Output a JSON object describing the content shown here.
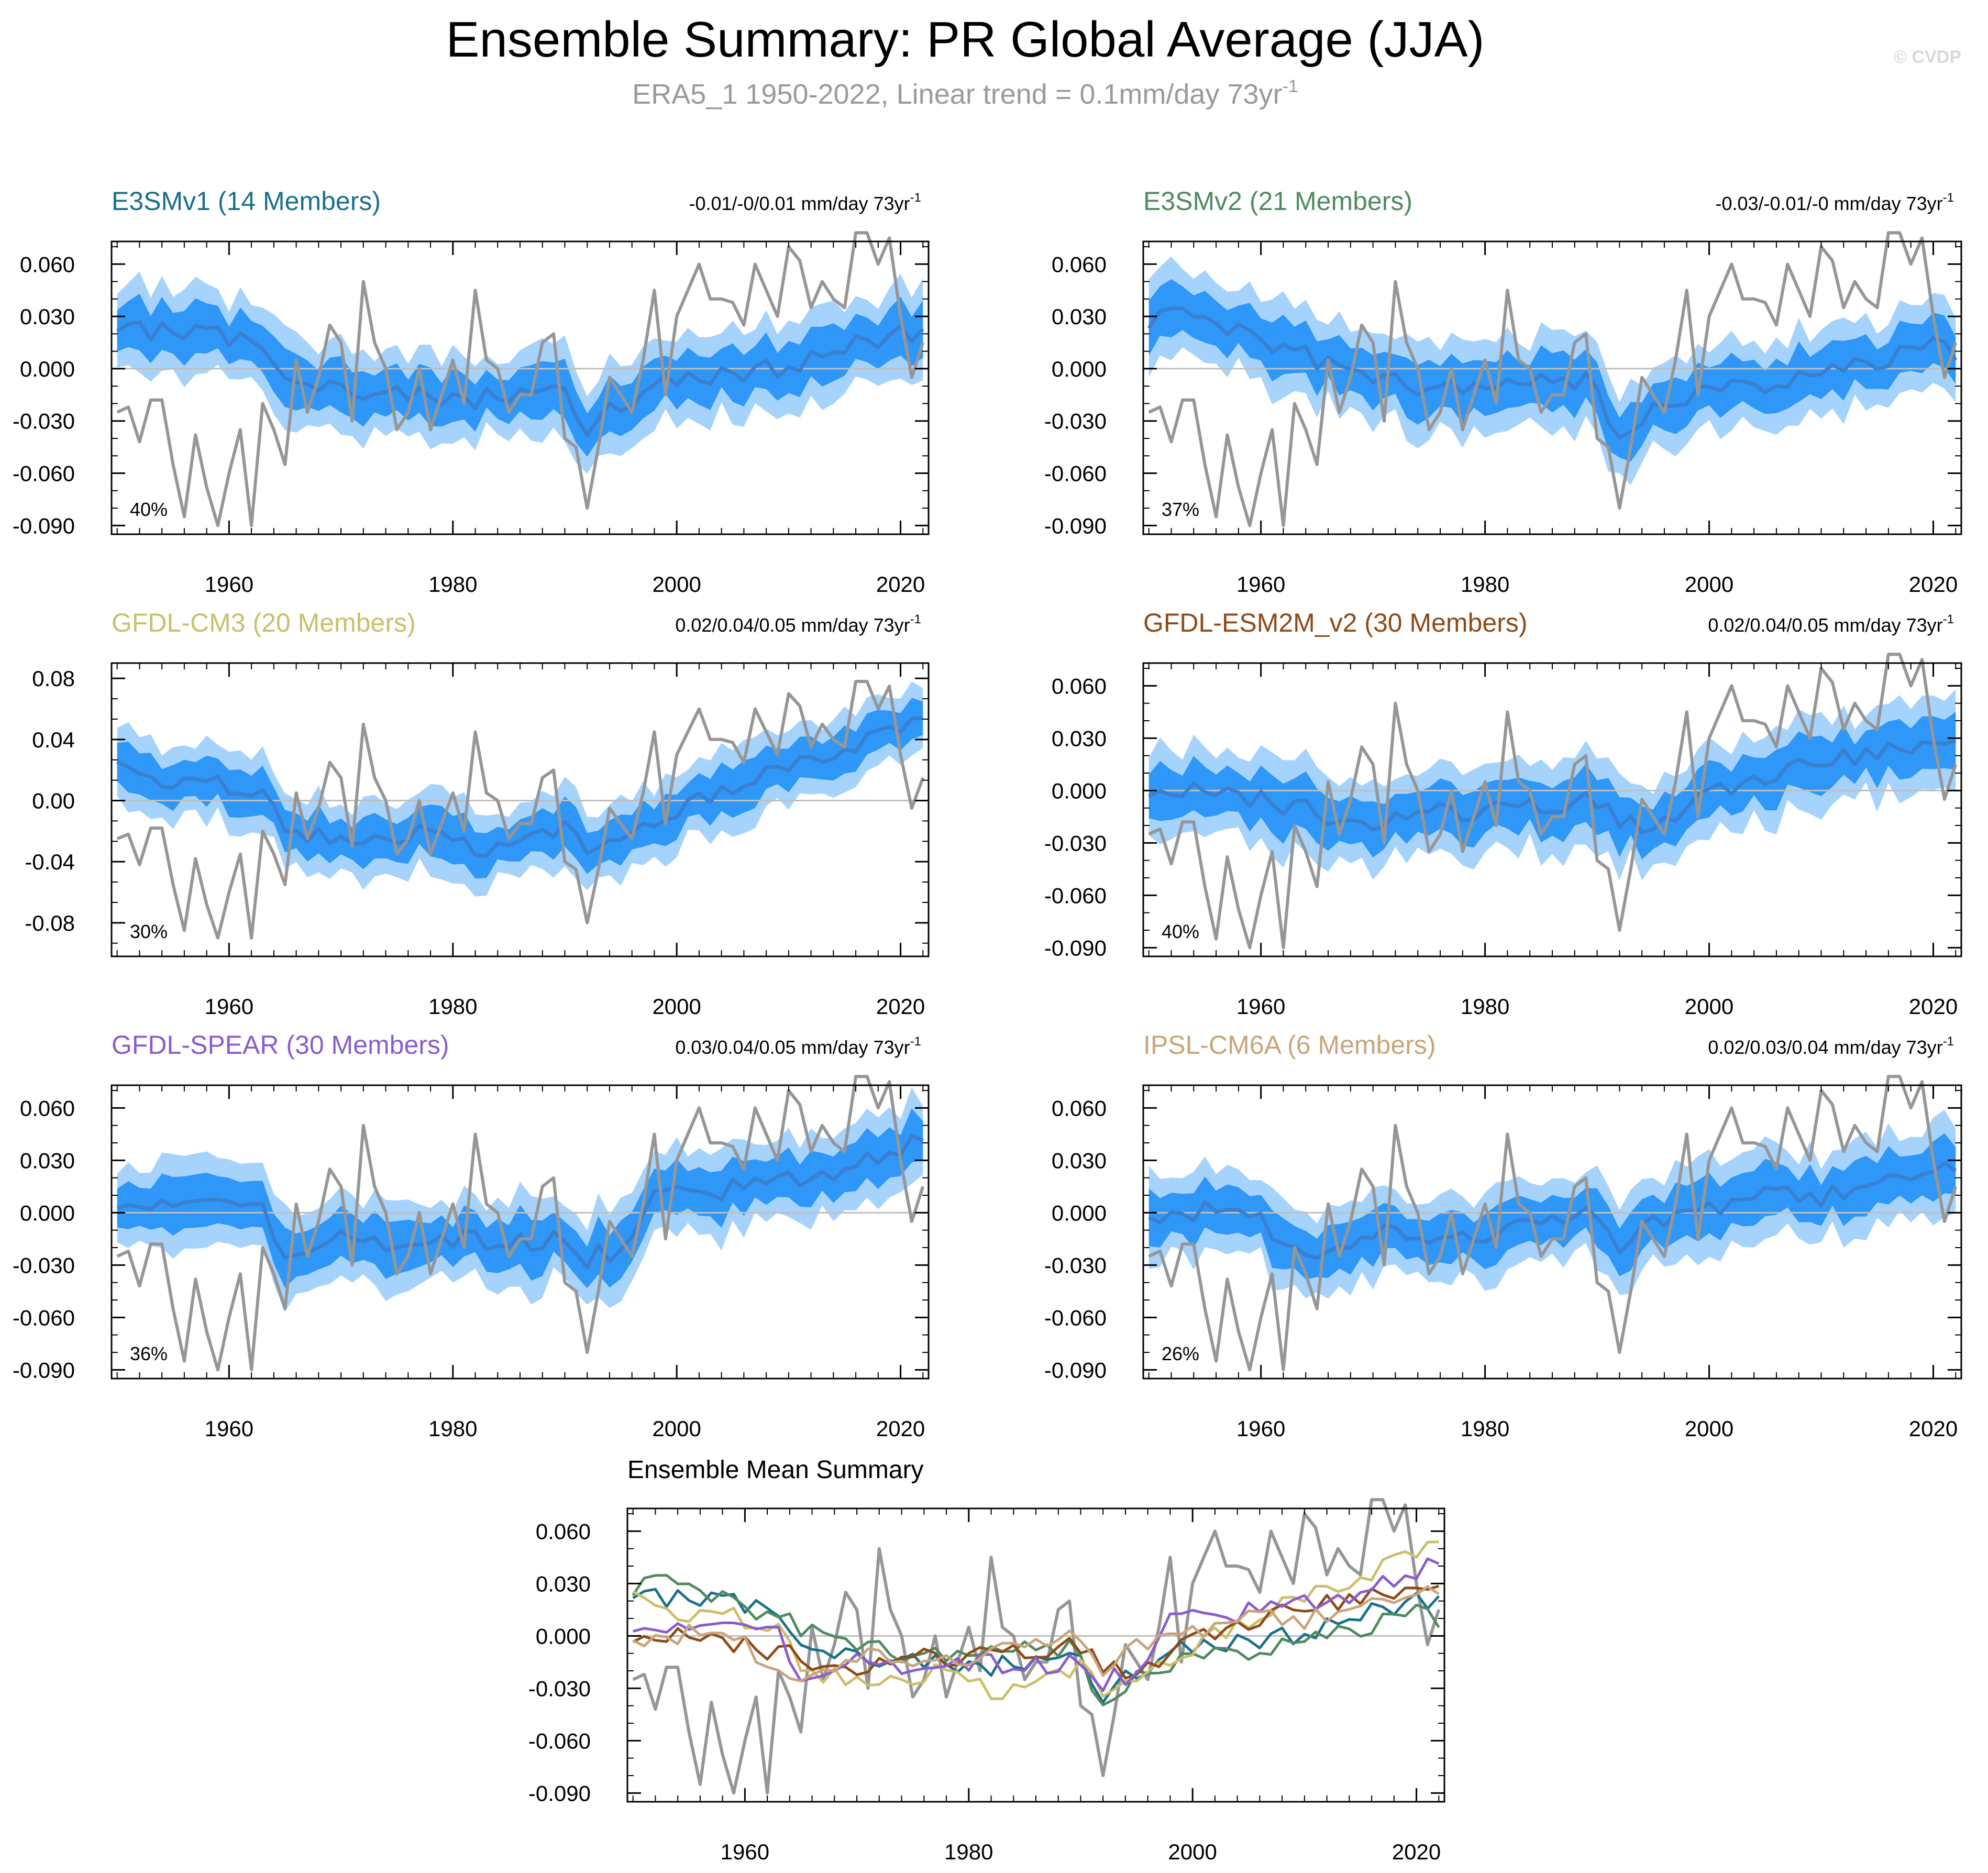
{
  "page": {
    "title": "Ensemble Summary: PR Global Average (JJA)",
    "subtitle_main": "ERA5_1 1950-2022, Linear trend = 0.1mm/day 73yr",
    "subtitle_sup": "-1",
    "watermark": "© CVDP"
  },
  "colors": {
    "band_outer": "#a6d3fb",
    "band_inner": "#2e97f8",
    "mean_line": "#3a7fd0",
    "obs_line": "#969696",
    "zero_line": "#bfbfbf"
  },
  "chart_data": [
    {
      "type": "line",
      "title": "E3SMv1 (14 Members)",
      "title_color": "#19708b",
      "trend": "-0.01/-0/0.01 mm/day 73yr",
      "trend_sup": "-1",
      "pct": "40%",
      "ylim": [
        -0.095,
        0.073
      ],
      "xlim": [
        1949.5,
        2022.5
      ],
      "yticks": [
        0.06,
        0.03,
        0.0,
        -0.03,
        -0.06,
        -0.09
      ],
      "yticklabels": [
        "0.060",
        "0.030",
        "0.000",
        "-0.030",
        "-0.060",
        "-0.090"
      ],
      "xticks": [
        1960,
        1980,
        2000,
        2020
      ],
      "xticklabels": [
        "1960",
        "1980",
        "2000",
        "2020"
      ],
      "series": [
        {
          "name": "E3SMv1 ensemble mean",
          "anchors": [
            [
              1950,
              0.026
            ],
            [
              1955,
              0.02
            ],
            [
              1960,
              0.018
            ],
            [
              1963,
              0.014
            ],
            [
              1965,
              0.0
            ],
            [
              1970,
              -0.012
            ],
            [
              1975,
              -0.015
            ],
            [
              1980,
              -0.018
            ],
            [
              1985,
              -0.016
            ],
            [
              1990,
              -0.01
            ],
            [
              1992,
              -0.035
            ],
            [
              1995,
              -0.02
            ],
            [
              2000,
              -0.004
            ],
            [
              2005,
              -0.005
            ],
            [
              2010,
              0.002
            ],
            [
              2015,
              0.012
            ],
            [
              2020,
              0.022
            ],
            [
              2022,
              0.018
            ]
          ]
        }
      ]
    },
    {
      "type": "line",
      "title": "E3SMv2 (21 Members)",
      "title_color": "#4f8a5e",
      "trend": "-0.03/-0.01/-0 mm/day 73yr",
      "trend_sup": "-1",
      "pct": "37%",
      "ylim": [
        -0.095,
        0.073
      ],
      "xlim": [
        1949.5,
        2022.5
      ],
      "yticks": [
        0.06,
        0.03,
        0.0,
        -0.03,
        -0.06,
        -0.09
      ],
      "yticklabels": [
        "0.060",
        "0.030",
        "0.000",
        "-0.030",
        "-0.060",
        "-0.090"
      ],
      "xticks": [
        1960,
        1980,
        2000,
        2020
      ],
      "xticklabels": [
        "1960",
        "1980",
        "2000",
        "2020"
      ],
      "series": [
        {
          "name": "E3SMv2 ensemble mean",
          "anchors": [
            [
              1950,
              0.026
            ],
            [
              1953,
              0.03
            ],
            [
              1956,
              0.028
            ],
            [
              1960,
              0.018
            ],
            [
              1965,
              0.005
            ],
            [
              1970,
              -0.006
            ],
            [
              1975,
              -0.01
            ],
            [
              1980,
              -0.012
            ],
            [
              1985,
              -0.006
            ],
            [
              1990,
              -0.008
            ],
            [
              1992,
              -0.045
            ],
            [
              1995,
              -0.02
            ],
            [
              2000,
              -0.012
            ],
            [
              2005,
              -0.008
            ],
            [
              2010,
              -0.002
            ],
            [
              2015,
              0.004
            ],
            [
              2020,
              0.012
            ],
            [
              2022,
              0.01
            ]
          ]
        }
      ]
    },
    {
      "type": "line",
      "title": "GFDL-CM3 (20 Members)",
      "title_color": "#cbbf6a",
      "trend": "0.02/0.04/0.05 mm/day 73yr",
      "trend_sup": "-1",
      "pct": "30%",
      "ylim": [
        -0.102,
        0.09
      ],
      "xlim": [
        1949.5,
        2022.5
      ],
      "yticks": [
        0.08,
        0.04,
        0.0,
        -0.04,
        -0.08
      ],
      "yticklabels": [
        "0.08",
        "0.04",
        "0.00",
        "-0.04",
        "-0.08"
      ],
      "xticks": [
        1960,
        1980,
        2000,
        2020
      ],
      "xticklabels": [
        "1960",
        "1980",
        "2000",
        "2020"
      ],
      "series": [
        {
          "name": "GFDL-CM3 ensemble mean",
          "anchors": [
            [
              1950,
              0.022
            ],
            [
              1955,
              0.012
            ],
            [
              1960,
              0.01
            ],
            [
              1963,
              0.005
            ],
            [
              1965,
              -0.02
            ],
            [
              1970,
              -0.024
            ],
            [
              1975,
              -0.022
            ],
            [
              1980,
              -0.022
            ],
            [
              1982,
              -0.035
            ],
            [
              1985,
              -0.03
            ],
            [
              1990,
              -0.015
            ],
            [
              1992,
              -0.038
            ],
            [
              1995,
              -0.02
            ],
            [
              2000,
              -0.005
            ],
            [
              2005,
              0.008
            ],
            [
              2010,
              0.022
            ],
            [
              2015,
              0.035
            ],
            [
              2020,
              0.046
            ],
            [
              2022,
              0.05
            ]
          ]
        }
      ]
    },
    {
      "type": "line",
      "title": "GFDL-ESM2M_v2 (30 Members)",
      "title_color": "#8e4a17",
      "trend": "0.02/0.04/0.05 mm/day 73yr",
      "trend_sup": "-1",
      "pct": "40%",
      "ylim": [
        -0.095,
        0.073
      ],
      "xlim": [
        1949.5,
        2022.5
      ],
      "yticks": [
        0.06,
        0.03,
        0.0,
        -0.03,
        -0.06,
        -0.09
      ],
      "yticklabels": [
        "0.060",
        "0.030",
        "0.000",
        "-0.030",
        "-0.060",
        "-0.090"
      ],
      "xticks": [
        1960,
        1980,
        2000,
        2020
      ],
      "xticklabels": [
        "1960",
        "1980",
        "2000",
        "2020"
      ],
      "series": [
        {
          "name": "GFDL-ESM2M_v2 ensemble mean",
          "anchors": [
            [
              1950,
              0.002
            ],
            [
              1955,
              -0.002
            ],
            [
              1960,
              -0.005
            ],
            [
              1964,
              -0.01
            ],
            [
              1966,
              -0.025
            ],
            [
              1970,
              -0.018
            ],
            [
              1975,
              -0.012
            ],
            [
              1980,
              -0.012
            ],
            [
              1985,
              -0.01
            ],
            [
              1990,
              -0.006
            ],
            [
              1992,
              -0.016
            ],
            [
              1995,
              -0.02
            ],
            [
              2000,
              0.0
            ],
            [
              2005,
              0.006
            ],
            [
              2010,
              0.018
            ],
            [
              2015,
              0.022
            ],
            [
              2020,
              0.024
            ],
            [
              2022,
              0.026
            ]
          ]
        }
      ]
    },
    {
      "type": "line",
      "title": "GFDL-SPEAR (30 Members)",
      "title_color": "#8a5ccc",
      "trend": "0.03/0.04/0.05 mm/day 73yr",
      "trend_sup": "-1",
      "pct": "36%",
      "ylim": [
        -0.095,
        0.073
      ],
      "xlim": [
        1949.5,
        2022.5
      ],
      "yticks": [
        0.06,
        0.03,
        0.0,
        -0.03,
        -0.06,
        -0.09
      ],
      "yticklabels": [
        "0.060",
        "0.030",
        "0.000",
        "-0.030",
        "-0.060",
        "-0.090"
      ],
      "xticks": [
        1960,
        1980,
        2000,
        2020
      ],
      "xticklabels": [
        "1960",
        "1980",
        "2000",
        "2020"
      ],
      "series": [
        {
          "name": "GFDL-SPEAR ensemble mean",
          "anchors": [
            [
              1950,
              0.008
            ],
            [
              1955,
              0.008
            ],
            [
              1960,
              0.002
            ],
            [
              1963,
              0.0
            ],
            [
              1965,
              -0.022
            ],
            [
              1970,
              -0.015
            ],
            [
              1975,
              -0.018
            ],
            [
              1980,
              -0.015
            ],
            [
              1985,
              -0.018
            ],
            [
              1990,
              -0.012
            ],
            [
              1992,
              -0.026
            ],
            [
              1995,
              -0.02
            ],
            [
              1998,
              0.008
            ],
            [
              2000,
              0.012
            ],
            [
              2005,
              0.014
            ],
            [
              2010,
              0.02
            ],
            [
              2015,
              0.026
            ],
            [
              2020,
              0.036
            ],
            [
              2022,
              0.042
            ]
          ]
        }
      ]
    },
    {
      "type": "line",
      "title": "IPSL-CM6A (6 Members)",
      "title_color": "#c9a47c",
      "trend": "0.02/0.03/0.04 mm/day 73yr",
      "trend_sup": "-1",
      "pct": "26%",
      "ylim": [
        -0.095,
        0.073
      ],
      "xlim": [
        1949.5,
        2022.5
      ],
      "yticks": [
        0.06,
        0.03,
        0.0,
        -0.03,
        -0.06,
        -0.09
      ],
      "yticklabels": [
        "0.060",
        "0.030",
        "0.000",
        "-0.030",
        "-0.060",
        "-0.090"
      ],
      "xticks": [
        1960,
        1980,
        2000,
        2020
      ],
      "xticklabels": [
        "1960",
        "1980",
        "2000",
        "2020"
      ],
      "series": [
        {
          "name": "IPSL-CM6A ensemble mean",
          "anchors": [
            [
              1950,
              -0.004
            ],
            [
              1955,
              0.002
            ],
            [
              1960,
              -0.005
            ],
            [
              1965,
              -0.028
            ],
            [
              1970,
              -0.01
            ],
            [
              1975,
              -0.012
            ],
            [
              1980,
              -0.012
            ],
            [
              1985,
              -0.006
            ],
            [
              1990,
              -0.002
            ],
            [
              1992,
              -0.028
            ],
            [
              1995,
              -0.005
            ],
            [
              2000,
              0.004
            ],
            [
              2005,
              0.01
            ],
            [
              2010,
              0.008
            ],
            [
              2015,
              0.018
            ],
            [
              2020,
              0.024
            ],
            [
              2022,
              0.03
            ]
          ]
        }
      ]
    },
    {
      "type": "line",
      "title": "Ensemble Mean Summary",
      "title_color": "#000000",
      "ylim": [
        -0.095,
        0.073
      ],
      "xlim": [
        1949.5,
        2022.5
      ],
      "yticks": [
        0.06,
        0.03,
        0.0,
        -0.03,
        -0.06,
        -0.09
      ],
      "yticklabels": [
        "0.060",
        "0.030",
        "0.000",
        "-0.030",
        "-0.060",
        "-0.090"
      ],
      "xticks": [
        1960,
        1980,
        2000,
        2020
      ],
      "xticklabels": [
        "1960",
        "1980",
        "2000",
        "2020"
      ],
      "series": [
        {
          "name": "E3SMv1",
          "color": "#19708b",
          "ref": 0
        },
        {
          "name": "E3SMv2",
          "color": "#4f8a5e",
          "ref": 1
        },
        {
          "name": "GFDL-CM3",
          "color": "#cbbf6a",
          "ref": 2
        },
        {
          "name": "GFDL-ESM2M_v2",
          "color": "#8e4a17",
          "ref": 3
        },
        {
          "name": "GFDL-SPEAR",
          "color": "#8a5ccc",
          "ref": 4
        },
        {
          "name": "IPSL-CM6A",
          "color": "#c9a47c",
          "ref": 5
        }
      ]
    }
  ],
  "observations": {
    "name": "ERA5_1",
    "years": [
      1950,
      1951,
      1952,
      1953,
      1954,
      1955,
      1956,
      1957,
      1958,
      1959,
      1960,
      1961,
      1962,
      1963,
      1964,
      1965,
      1966,
      1967,
      1968,
      1969,
      1970,
      1971,
      1972,
      1973,
      1974,
      1975,
      1976,
      1977,
      1978,
      1979,
      1980,
      1981,
      1982,
      1983,
      1984,
      1985,
      1986,
      1987,
      1988,
      1989,
      1990,
      1991,
      1992,
      1993,
      1994,
      1995,
      1996,
      1997,
      1998,
      1999,
      2000,
      2001,
      2002,
      2003,
      2004,
      2005,
      2006,
      2007,
      2008,
      2009,
      2010,
      2011,
      2012,
      2013,
      2014,
      2015,
      2016,
      2017,
      2018,
      2019,
      2020,
      2021,
      2022
    ],
    "values": [
      -0.025,
      -0.022,
      -0.042,
      -0.018,
      -0.018,
      -0.055,
      -0.085,
      -0.038,
      -0.068,
      -0.09,
      -0.06,
      -0.035,
      -0.09,
      -0.02,
      -0.035,
      -0.055,
      0.005,
      -0.025,
      -0.005,
      0.025,
      0.015,
      -0.03,
      0.05,
      0.015,
      0.0,
      -0.035,
      -0.025,
      0.0,
      -0.035,
      -0.015,
      0.005,
      -0.02,
      0.045,
      0.005,
      0.0,
      -0.025,
      -0.015,
      -0.015,
      0.015,
      0.02,
      -0.04,
      -0.045,
      -0.08,
      -0.045,
      -0.005,
      -0.015,
      -0.025,
      0.005,
      0.045,
      -0.015,
      0.03,
      0.045,
      0.06,
      0.04,
      0.04,
      0.038,
      0.025,
      0.06,
      0.045,
      0.03,
      0.07,
      0.062,
      0.035,
      0.05,
      0.04,
      0.035,
      0.078,
      0.078,
      0.06,
      0.075,
      0.03,
      -0.005,
      0.015
    ]
  }
}
